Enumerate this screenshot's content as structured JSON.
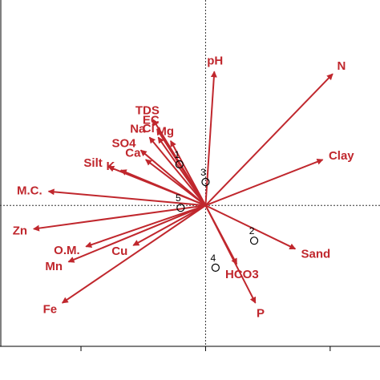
{
  "chart_data": {
    "type": "scatter",
    "subtype": "pca-biplot",
    "title": "",
    "xlabel": "",
    "ylabel": "",
    "xlim": [
      -1.65,
      1.4
    ],
    "ylim": [
      -1.2,
      1.75
    ],
    "x_ticks": [
      -1,
      0,
      1
    ],
    "grid": false,
    "reference_lines": "dotted lines at x=0 and y=0",
    "legend": "none",
    "colors": {
      "vectors": "#c0272d",
      "sites": "#000000",
      "axes": "#000000"
    },
    "vectors": [
      {
        "label": "pH",
        "x": 0.07,
        "y": 1.14
      },
      {
        "label": "N",
        "x": 1.02,
        "y": 1.12
      },
      {
        "label": "TDS",
        "x": -0.42,
        "y": 0.73
      },
      {
        "label": "EC",
        "x": -0.39,
        "y": 0.65
      },
      {
        "label": "Na",
        "x": -0.45,
        "y": 0.58
      },
      {
        "label": "Cl",
        "x": -0.38,
        "y": 0.58
      },
      {
        "label": "Mg",
        "x": -0.28,
        "y": 0.55
      },
      {
        "label": "SO4",
        "x": -0.52,
        "y": 0.47
      },
      {
        "label": "Ca",
        "x": -0.48,
        "y": 0.39
      },
      {
        "label": "Silt",
        "x": -0.78,
        "y": 0.33
      },
      {
        "label": "K",
        "x": -0.68,
        "y": 0.3
      },
      {
        "label": "Clay",
        "x": 0.94,
        "y": 0.39
      },
      {
        "label": "M.C.",
        "x": -1.26,
        "y": 0.12
      },
      {
        "label": "Zn",
        "x": -1.38,
        "y": -0.2
      },
      {
        "label": "O.M.",
        "x": -0.96,
        "y": -0.35
      },
      {
        "label": "Cu",
        "x": -0.58,
        "y": -0.34
      },
      {
        "label": "Mn",
        "x": -1.1,
        "y": -0.48
      },
      {
        "label": "Fe",
        "x": -1.15,
        "y": -0.83
      },
      {
        "label": "Sand",
        "x": 0.72,
        "y": -0.37
      },
      {
        "label": "HCO3",
        "x": 0.25,
        "y": -0.5
      },
      {
        "label": "P",
        "x": 0.4,
        "y": -0.83
      }
    ],
    "sites": [
      {
        "label": "1",
        "x": -0.21,
        "y": 0.35
      },
      {
        "label": "2",
        "x": 0.39,
        "y": -0.3
      },
      {
        "label": "3",
        "x": 0.0,
        "y": 0.2
      },
      {
        "label": "4",
        "x": 0.08,
        "y": -0.53
      },
      {
        "label": "5",
        "x": -0.2,
        "y": -0.02
      }
    ]
  }
}
